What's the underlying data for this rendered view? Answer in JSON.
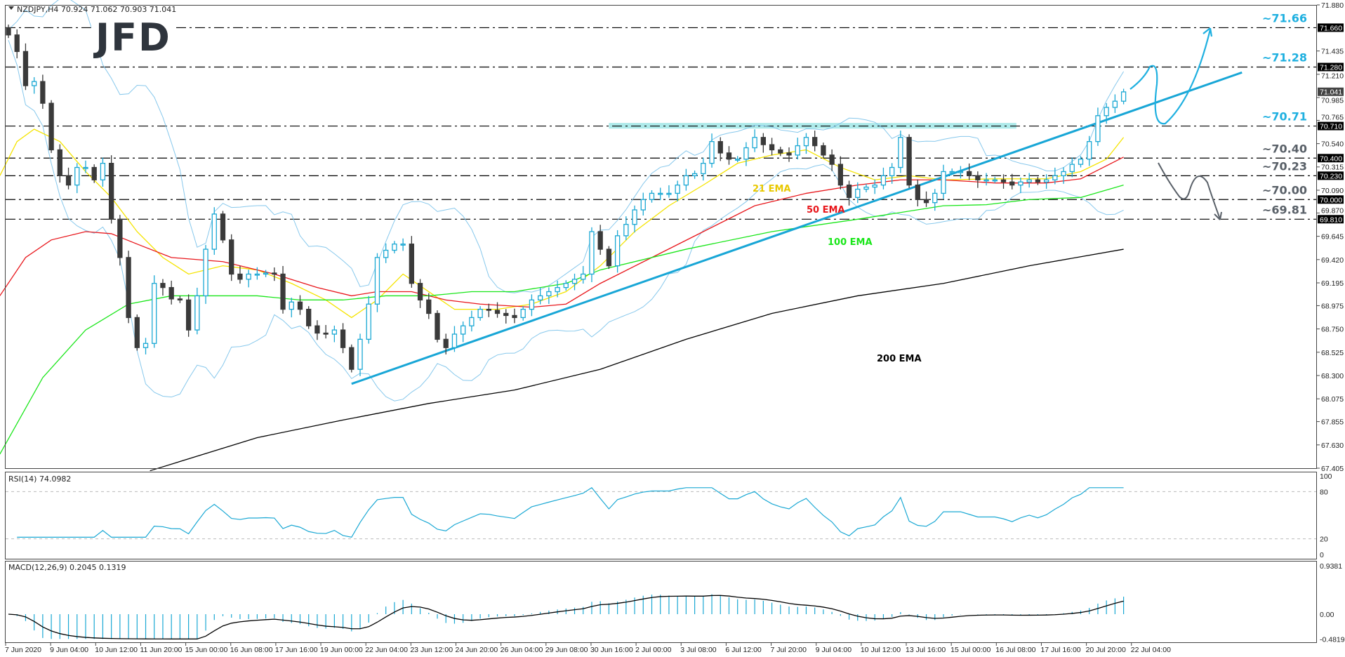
{
  "header": {
    "symbol_info": "NZDJPY,H4  70.924 71.062 70.903 71.041",
    "rsi_label": "RSI(14) 74.0982",
    "macd_label": "MACD(12,26,9) 0.2045 0.1319"
  },
  "logo": {
    "text": "JFD"
  },
  "colors": {
    "bull": "#1aa8d4",
    "bear": "#3a3a3a",
    "ema21": "#f5e400",
    "ema50": "#e8161b",
    "ema100": "#19e619",
    "ema200": "#000000",
    "bands": "#87c8ec",
    "trendline": "#18a6d6",
    "resistance_zone": "#aeeaea",
    "level_cyan": "#1fb0e0",
    "level_gray": "#596068"
  },
  "chart_data": {
    "type": "candlestick",
    "ylim": [
      67.405,
      71.88
    ],
    "price_ticks": [
      "71.880",
      "71.435",
      "71.210",
      "70.985",
      "70.765",
      "70.540",
      "70.315",
      "70.090",
      "69.870",
      "69.645",
      "69.420",
      "69.195",
      "68.975",
      "68.750",
      "68.525",
      "68.300",
      "68.075",
      "67.855",
      "67.630",
      "67.405"
    ],
    "x_labels": [
      "7 Jun 2020",
      "9 Jun 04:00",
      "10 Jun 12:00",
      "11 Jun 20:00",
      "15 Jun 00:00",
      "16 Jun 08:00",
      "17 Jun 16:00",
      "19 Jun 00:00",
      "22 Jun 04:00",
      "23 Jun 12:00",
      "24 Jun 20:00",
      "26 Jun 04:00",
      "29 Jun 08:00",
      "30 Jun 16:00",
      "2 Jul 00:00",
      "3 Jul 08:00",
      "6 Jul 12:00",
      "7 Jul 20:00",
      "9 Jul 04:00",
      "10 Jul 12:00",
      "13 Jul 16:00",
      "15 Jul 00:00",
      "16 Jul 08:00",
      "17 Jul 16:00",
      "20 Jul 20:00",
      "22 Jul 04:00"
    ],
    "first_open": 71.66,
    "closes": [
      71.59,
      71.43,
      71.1,
      71.14,
      70.93,
      70.48,
      70.23,
      70.14,
      70.31,
      70.31,
      70.19,
      70.35,
      69.81,
      69.44,
      68.86,
      68.57,
      68.61,
      69.19,
      69.15,
      69.04,
      69.03,
      68.74,
      69.07,
      69.52,
      69.86,
      69.61,
      69.28,
      69.23,
      69.28,
      69.28,
      69.29,
      69.28,
      68.94,
      69.01,
      68.94,
      68.78,
      68.71,
      68.7,
      68.74,
      68.57,
      68.36,
      68.65,
      68.99,
      69.44,
      69.51,
      69.57,
      69.57,
      69.19,
      69.03,
      68.9,
      68.65,
      68.57,
      68.7,
      68.78,
      68.86,
      68.94,
      68.93,
      68.9,
      68.88,
      68.86,
      68.94,
      69.03,
      69.07,
      69.11,
      69.15,
      69.19,
      69.23,
      69.28,
      69.69,
      69.52,
      69.36,
      69.65,
      69.76,
      69.9,
      70.0,
      70.06,
      70.06,
      70.06,
      70.14,
      70.23,
      70.25,
      70.35,
      70.56,
      70.45,
      70.39,
      70.39,
      70.5,
      70.6,
      70.53,
      70.48,
      70.45,
      70.43,
      70.52,
      70.6,
      70.52,
      70.43,
      70.34,
      70.14,
      70.02,
      70.1,
      70.12,
      70.14,
      70.23,
      70.31,
      70.6,
      70.14,
      70.0,
      69.97,
      70.06,
      70.27,
      70.27,
      70.27,
      70.23,
      70.19,
      70.19,
      70.19,
      70.17,
      70.14,
      70.17,
      70.19,
      70.17,
      70.19,
      70.23,
      70.27,
      70.34,
      70.39,
      70.56,
      70.81,
      70.89,
      70.95,
      71.04
    ],
    "current_price": "71.041",
    "ema_lines": [
      {
        "name": "21 EMA",
        "color_key": "ema21",
        "points": [
          [
            -1,
            70.23
          ],
          [
            1,
            70.56
          ],
          [
            3,
            70.68
          ],
          [
            6,
            70.56
          ],
          [
            9,
            70.27
          ],
          [
            12,
            70.02
          ],
          [
            15,
            69.69
          ],
          [
            18,
            69.44
          ],
          [
            21,
            69.28
          ],
          [
            25,
            69.36
          ],
          [
            29,
            69.32
          ],
          [
            33,
            69.19
          ],
          [
            37,
            69.03
          ],
          [
            40,
            68.86
          ],
          [
            43,
            69.03
          ],
          [
            46,
            69.28
          ],
          [
            49,
            69.11
          ],
          [
            52,
            68.94
          ],
          [
            57,
            68.94
          ],
          [
            61,
            68.99
          ],
          [
            65,
            69.11
          ],
          [
            69,
            69.36
          ],
          [
            73,
            69.69
          ],
          [
            77,
            69.94
          ],
          [
            81,
            70.14
          ],
          [
            85,
            70.35
          ],
          [
            89,
            70.43
          ],
          [
            93,
            70.48
          ],
          [
            97,
            70.31
          ],
          [
            101,
            70.19
          ],
          [
            105,
            70.23
          ],
          [
            109,
            70.19
          ],
          [
            115,
            70.2
          ],
          [
            121,
            70.2
          ],
          [
            125,
            70.27
          ],
          [
            128,
            70.39
          ],
          [
            130,
            70.6
          ]
        ]
      },
      {
        "name": "50 EMA",
        "color_key": "ema50",
        "points": [
          [
            -1,
            69.07
          ],
          [
            2,
            69.44
          ],
          [
            5,
            69.61
          ],
          [
            9,
            69.69
          ],
          [
            12,
            69.67
          ],
          [
            15,
            69.57
          ],
          [
            19,
            69.44
          ],
          [
            25,
            69.4
          ],
          [
            31,
            69.28
          ],
          [
            36,
            69.15
          ],
          [
            40,
            69.07
          ],
          [
            43,
            69.11
          ],
          [
            47,
            69.11
          ],
          [
            51,
            69.03
          ],
          [
            55,
            68.99
          ],
          [
            61,
            68.96
          ],
          [
            65,
            68.99
          ],
          [
            69,
            69.19
          ],
          [
            75,
            69.44
          ],
          [
            81,
            69.69
          ],
          [
            87,
            69.94
          ],
          [
            93,
            70.06
          ],
          [
            99,
            70.14
          ],
          [
            104,
            70.19
          ],
          [
            109,
            70.19
          ],
          [
            115,
            70.16
          ],
          [
            121,
            70.16
          ],
          [
            125,
            70.2
          ],
          [
            130,
            70.41
          ]
        ]
      },
      {
        "name": "100 EMA",
        "color_key": "ema100",
        "points": [
          [
            -1,
            67.54
          ],
          [
            4,
            68.28
          ],
          [
            9,
            68.74
          ],
          [
            14,
            68.99
          ],
          [
            19,
            69.07
          ],
          [
            29,
            69.07
          ],
          [
            34,
            69.03
          ],
          [
            39,
            69.03
          ],
          [
            44,
            69.07
          ],
          [
            49,
            69.07
          ],
          [
            54,
            69.11
          ],
          [
            59,
            69.11
          ],
          [
            65,
            69.19
          ],
          [
            69,
            69.32
          ],
          [
            79,
            69.52
          ],
          [
            89,
            69.69
          ],
          [
            99,
            69.81
          ],
          [
            109,
            69.94
          ],
          [
            114,
            69.95
          ],
          [
            119,
            70.0
          ],
          [
            125,
            70.02
          ],
          [
            130,
            70.14
          ]
        ]
      },
      {
        "name": "200 EMA",
        "color_key": "ema200",
        "points": [
          [
            16.5,
            67.38
          ],
          [
            29,
            67.7
          ],
          [
            39,
            67.87
          ],
          [
            49,
            68.03
          ],
          [
            59,
            68.16
          ],
          [
            69,
            68.36
          ],
          [
            79,
            68.65
          ],
          [
            89,
            68.9
          ],
          [
            99,
            69.07
          ],
          [
            109,
            69.19
          ],
          [
            119,
            69.36
          ],
          [
            130,
            69.52
          ]
        ]
      }
    ],
    "levels": [
      {
        "value": 71.66,
        "label": "~71.66",
        "axis_label": "71.660",
        "style": "cyan"
      },
      {
        "value": 71.28,
        "label": "~71.28",
        "axis_label": "71.280",
        "style": "cyan"
      },
      {
        "value": 70.71,
        "label": "~70.71",
        "axis_label": "70.710",
        "style": "cyan"
      },
      {
        "value": 70.4,
        "label": "~70.40",
        "axis_label": "70.400",
        "style": "gray"
      },
      {
        "value": 70.23,
        "label": "~70.23",
        "axis_label": "70.230",
        "style": "gray"
      },
      {
        "value": 70.0,
        "label": "~70.00",
        "axis_label": "70.000",
        "style": "gray"
      },
      {
        "value": 69.81,
        "label": "~69.81",
        "axis_label": "69.810",
        "style": "gray"
      }
    ],
    "resistance_zone": {
      "from_index": 70,
      "to_index": 117.5,
      "low": 70.685,
      "high": 70.74
    },
    "trendline": {
      "start": [
        40,
        68.22
      ],
      "end": [
        118,
        70.48
      ]
    },
    "rsi": {
      "ylim": [
        0,
        100
      ],
      "ticks": [
        "100",
        "80",
        "20",
        "0"
      ],
      "levels": [
        80,
        20
      ],
      "last": 74.0982
    },
    "macd": {
      "ylim": [
        -0.4819,
        0.9381
      ],
      "ticks": [
        "0.9381",
        "0.00",
        "-0.4819"
      ]
    }
  }
}
